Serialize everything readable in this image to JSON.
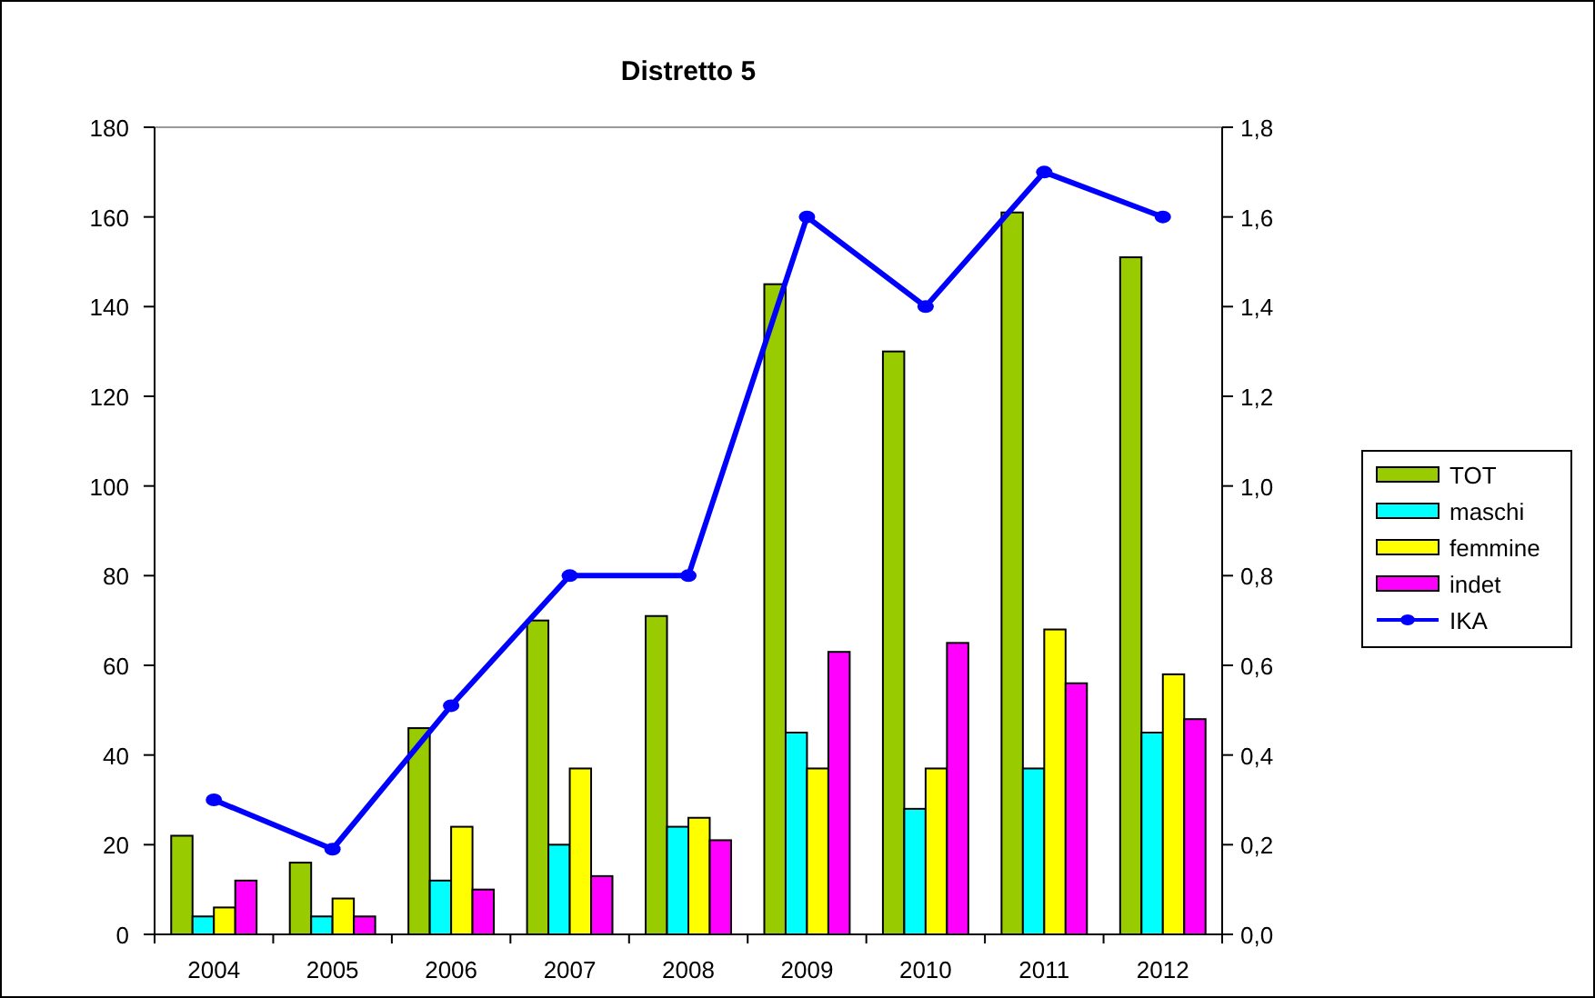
{
  "chart_data": {
    "type": "bar",
    "title": "Distretto 5",
    "categories": [
      "2004",
      "2005",
      "2006",
      "2007",
      "2008",
      "2009",
      "2010",
      "2011",
      "2012"
    ],
    "series": [
      {
        "name": "TOT",
        "color": "#99cc00",
        "values": [
          22,
          16,
          46,
          70,
          71,
          145,
          130,
          161,
          151
        ]
      },
      {
        "name": "maschi",
        "color": "#00ffff",
        "values": [
          4,
          4,
          12,
          20,
          24,
          45,
          28,
          37,
          45
        ]
      },
      {
        "name": "femmine",
        "color": "#ffff00",
        "values": [
          6,
          8,
          24,
          37,
          26,
          37,
          37,
          68,
          58
        ]
      },
      {
        "name": "indet",
        "color": "#ff00ff",
        "values": [
          12,
          4,
          10,
          13,
          21,
          63,
          65,
          56,
          48
        ]
      },
      {
        "name": "IKA",
        "color": "#0000ff",
        "type": "line",
        "axis": "y2",
        "marker": "circle",
        "values": [
          0.3,
          0.19,
          0.51,
          0.8,
          0.8,
          1.6,
          1.4,
          1.7,
          1.6
        ]
      }
    ],
    "ylim": [
      0,
      180
    ],
    "yticks": [
      0,
      20,
      40,
      60,
      80,
      100,
      120,
      140,
      160,
      180
    ],
    "y2lim": [
      0,
      1.8
    ],
    "y2ticks": [
      {
        "value": 0,
        "label": "0,0"
      },
      {
        "value": 0.2,
        "label": "0,2"
      },
      {
        "value": 0.4,
        "label": "0,4"
      },
      {
        "value": 0.6,
        "label": "0,6"
      },
      {
        "value": 0.8,
        "label": "0,8"
      },
      {
        "value": 1.0,
        "label": "1,0"
      },
      {
        "value": 1.2,
        "label": "1,2"
      },
      {
        "value": 1.4,
        "label": "1,4"
      },
      {
        "value": 1.6,
        "label": "1,6"
      },
      {
        "value": 1.8,
        "label": "1,8"
      }
    ],
    "grid": false,
    "legend": "right"
  }
}
